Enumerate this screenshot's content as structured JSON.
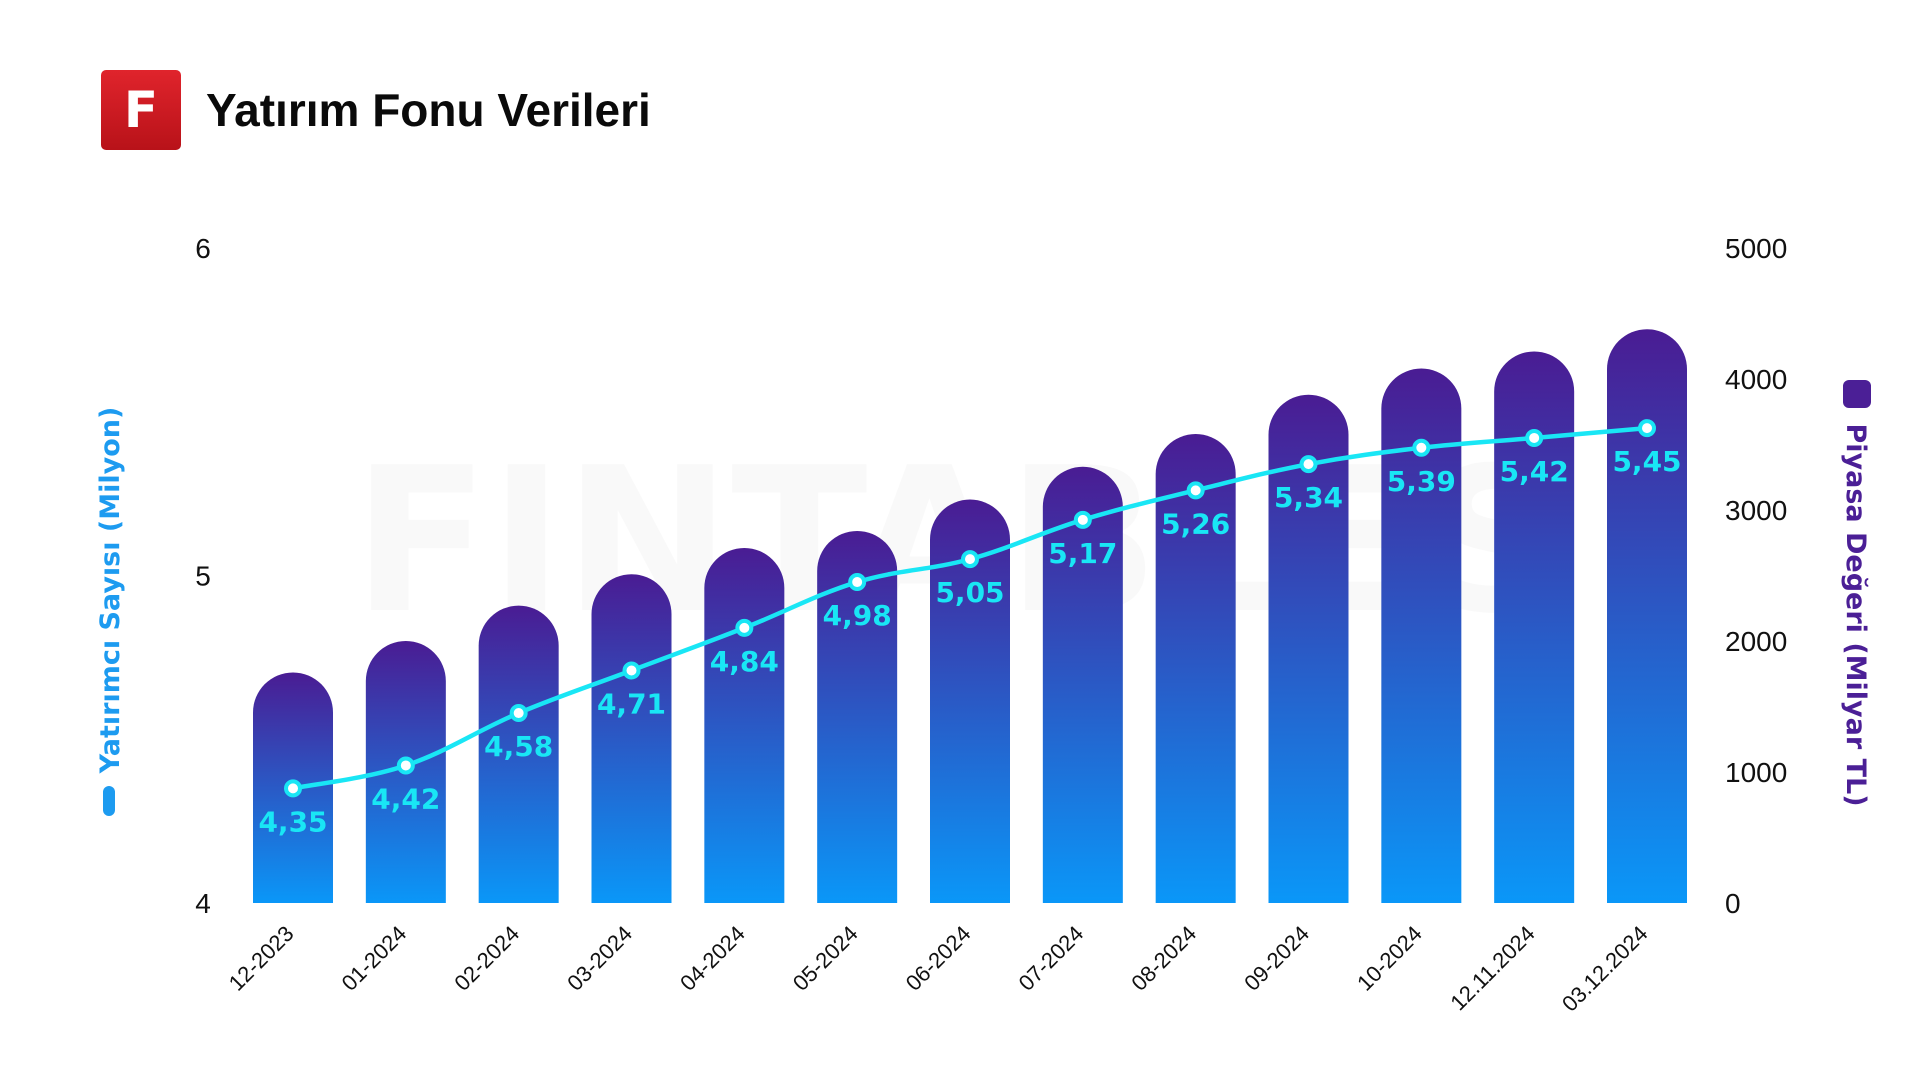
{
  "header": {
    "logo_letter": "F",
    "title": "Yatırım Fonu Verileri"
  },
  "watermark": "FINTABLES",
  "colors": {
    "bar_top": "#4a1c93",
    "bar_bottom": "#0a97f8",
    "line": "#19e6f5",
    "left_axis_title": "#1d9bf0",
    "right_axis_title": "#4b1f96",
    "logo": "#d01d25"
  },
  "chart_data": {
    "type": "bar",
    "title": "Yatırım Fonu Verileri",
    "categories": [
      "12-2023",
      "01-2024",
      "02-2024",
      "03-2024",
      "04-2024",
      "05-2024",
      "06-2024",
      "07-2024",
      "08-2024",
      "09-2024",
      "10-2024",
      "12.11.2024",
      "03.12.2024"
    ],
    "series": [
      {
        "name": "Piyasa Değeri (Milyar TL)",
        "type": "bar",
        "axis": "right",
        "values": [
          1760,
          2000,
          2270,
          2510,
          2710,
          2840,
          3080,
          3330,
          3580,
          3880,
          4080,
          4210,
          4380
        ]
      },
      {
        "name": "Yatırımcı Sayısı (Milyon)",
        "type": "line",
        "axis": "left",
        "values": [
          4.35,
          4.42,
          4.58,
          4.71,
          4.84,
          4.98,
          5.05,
          5.17,
          5.26,
          5.34,
          5.39,
          5.42,
          5.45
        ],
        "labels": [
          "4,35",
          "4,42",
          "4,58",
          "4,71",
          "4,84",
          "4,98",
          "5,05",
          "5,17",
          "5,26",
          "5,34",
          "5,39",
          "5,42",
          "5,45"
        ]
      }
    ],
    "y_left": {
      "label": "Yatırımcı Sayısı (Milyon)",
      "range": [
        4,
        6
      ],
      "ticks": [
        "4",
        "5",
        "6"
      ]
    },
    "y_right": {
      "label": "Piyasa Değeri (Milyar TL)",
      "range": [
        0,
        5000
      ],
      "ticks": [
        "0",
        "1000",
        "2000",
        "3000",
        "4000",
        "5000"
      ]
    },
    "grid": false,
    "legend": "axis-titles"
  }
}
